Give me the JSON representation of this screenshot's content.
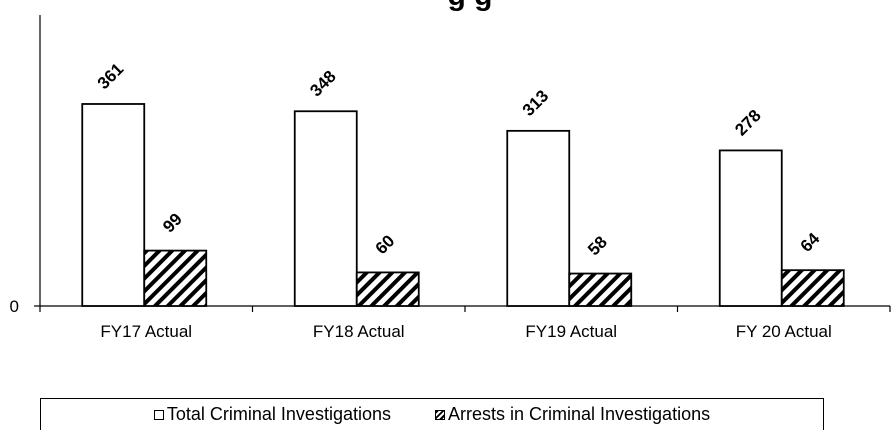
{
  "chart_data": {
    "type": "bar",
    "title": "g g",
    "xlabel": "",
    "ylabel": "",
    "categories": [
      "FY17 Actual",
      "FY18 Actual",
      "FY19 Actual",
      "FY 20 Actual"
    ],
    "series": [
      {
        "name": "Total Criminal Investigations",
        "values": [
          361,
          348,
          313,
          278
        ],
        "fill": "#ffffff"
      },
      {
        "name": "Arrests in Criminal Investigations",
        "values": [
          99,
          60,
          58,
          64
        ],
        "fill": "hatch"
      }
    ],
    "y_ticks": [
      "0"
    ],
    "ylim": [
      0,
      520
    ],
    "grid": false,
    "legend_position": "bottom"
  }
}
